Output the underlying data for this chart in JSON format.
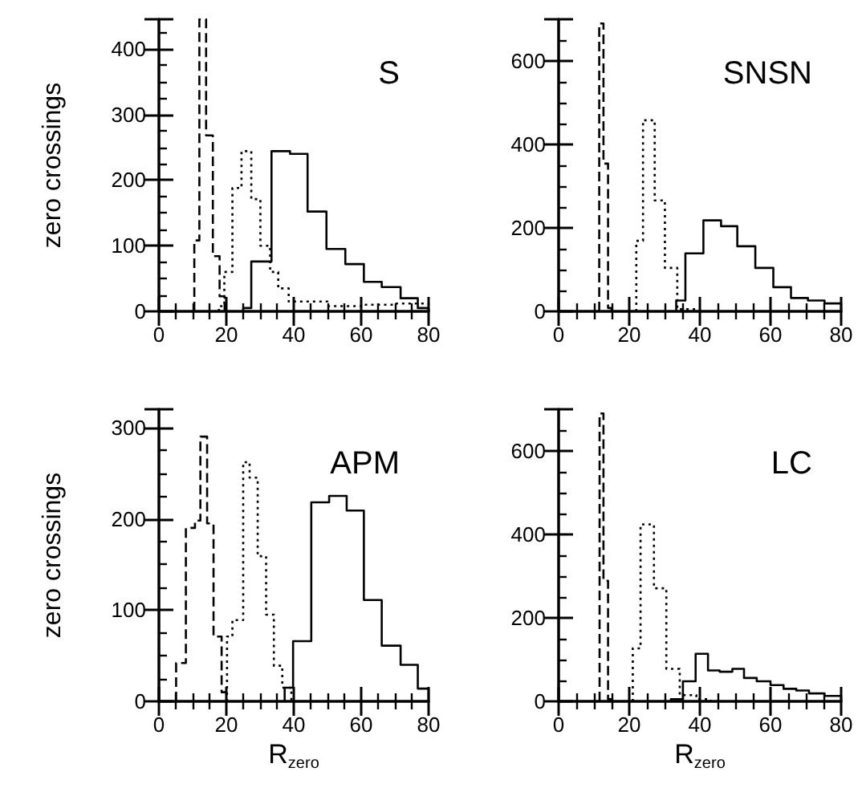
{
  "chart_data": [
    {
      "type": "step",
      "ylabel": "zero crossings",
      "annotations": [
        "S"
      ],
      "xlim": [
        0,
        80
      ],
      "xticks": [
        0,
        20,
        40,
        60,
        80
      ],
      "ylim": [
        0,
        445
      ],
      "yticks": [
        0,
        100,
        200,
        300,
        400
      ],
      "series": [
        {
          "color": "#000000",
          "line_style": "dashed",
          "x": [
            10.5,
            10.5,
            12,
            14,
            16,
            18,
            19.5
          ],
          "values": [
            0,
            108,
            445,
            268,
            84,
            23,
            0
          ]
        },
        {
          "color": "#000000",
          "line_style": "dotted",
          "x": [
            17.8,
            17.8,
            19.4,
            21.8,
            24.5,
            27.4,
            30.1,
            33,
            35.4,
            38.5,
            50,
            60,
            70,
            80
          ],
          "values": [
            0,
            8,
            60,
            188,
            244,
            171,
            100,
            60,
            35,
            15,
            8,
            10,
            12,
            0
          ]
        },
        {
          "color": "#000000",
          "line_style": "solid",
          "x": [
            25,
            25,
            27.4,
            33.4,
            38.9,
            44.1,
            49.7,
            55.3,
            60.8,
            66.1,
            71.7,
            76.8,
            80
          ],
          "values": [
            0,
            5,
            76,
            244,
            240,
            152,
            95,
            72,
            45,
            37,
            20,
            5,
            0
          ]
        }
      ]
    },
    {
      "type": "step",
      "annotations": [
        "SNSN"
      ],
      "xlim": [
        0,
        80
      ],
      "xticks": [
        0,
        20,
        40,
        60,
        80
      ],
      "ylim": [
        0,
        700
      ],
      "yticks": [
        0,
        200,
        400,
        600
      ],
      "series": [
        {
          "color": "#000000",
          "line_style": "dashed",
          "x": [
            11.5,
            11.5,
            12.7,
            14,
            15
          ],
          "values": [
            0,
            690,
            354,
            8,
            0
          ]
        },
        {
          "color": "#000000",
          "line_style": "dotted",
          "x": [
            22,
            22,
            23.9,
            27.2,
            30.1,
            33.6,
            40
          ],
          "values": [
            0,
            169,
            458,
            266,
            104,
            5,
            0
          ]
        },
        {
          "color": "#000000",
          "line_style": "solid",
          "x": [
            33.3,
            33.3,
            35.9,
            41,
            46,
            50.6,
            55.7,
            60.8,
            65.8,
            70.6,
            75.3,
            80
          ],
          "values": [
            0,
            26,
            139,
            218,
            204,
            156,
            104,
            58,
            32,
            26,
            19,
            0
          ]
        }
      ]
    },
    {
      "type": "step",
      "ylabel": "zero crossings",
      "xlabel": "R$_{zero}$",
      "annotations": [
        "APM"
      ],
      "xlim": [
        0,
        80
      ],
      "xticks": [
        0,
        20,
        40,
        60,
        80
      ],
      "ylim": [
        0,
        320
      ],
      "yticks": [
        0,
        100,
        200,
        300
      ],
      "series": [
        {
          "color": "#000000",
          "line_style": "dashed",
          "x": [
            5.1,
            5.1,
            8,
            10.7,
            12.3,
            14.3,
            16.2,
            18.6,
            20
          ],
          "values": [
            0,
            42,
            190,
            198,
            290,
            195,
            71,
            10,
            0
          ]
        },
        {
          "color": "#000000",
          "line_style": "dotted",
          "x": [
            20.2,
            20.2,
            21.8,
            25,
            26.9,
            29.3,
            31.8,
            34.1,
            36.6,
            39.3
          ],
          "values": [
            0,
            71,
            89,
            262,
            245,
            159,
            95,
            39,
            15,
            0
          ]
        },
        {
          "color": "#000000",
          "line_style": "solid",
          "x": [
            37.3,
            37.3,
            39.8,
            45.2,
            50.5,
            55.7,
            60.8,
            66.1,
            71.7,
            76.8,
            80
          ],
          "values": [
            0,
            15,
            66,
            218,
            225,
            209,
            111,
            61,
            40,
            14,
            0
          ]
        }
      ]
    },
    {
      "type": "step",
      "xlabel": "R$_{zero}$",
      "annotations": [
        "LC"
      ],
      "xlim": [
        0,
        80
      ],
      "xticks": [
        0,
        20,
        40,
        60,
        80
      ],
      "ylim": [
        0,
        700
      ],
      "yticks": [
        0,
        200,
        400,
        600
      ],
      "series": [
        {
          "color": "#000000",
          "line_style": "dashed",
          "x": [
            11.6,
            11.6,
            12.7,
            14,
            15
          ],
          "values": [
            0,
            690,
            289,
            5,
            0
          ]
        },
        {
          "color": "#000000",
          "line_style": "dotted",
          "x": [
            21,
            21,
            23.2,
            27,
            30.5,
            34.3,
            39,
            43
          ],
          "values": [
            0,
            127,
            424,
            271,
            78,
            15,
            5,
            0
          ]
        },
        {
          "color": "#000000",
          "line_style": "solid",
          "x": [
            31.8,
            31.8,
            35.2,
            38.8,
            42.3,
            45.6,
            49.2,
            52.5,
            56.1,
            60,
            63.7,
            67.3,
            70.9,
            75.3,
            80
          ],
          "values": [
            0,
            5,
            48,
            114,
            74,
            71,
            78,
            56,
            48,
            39,
            30,
            26,
            19,
            13,
            0
          ]
        }
      ]
    }
  ]
}
